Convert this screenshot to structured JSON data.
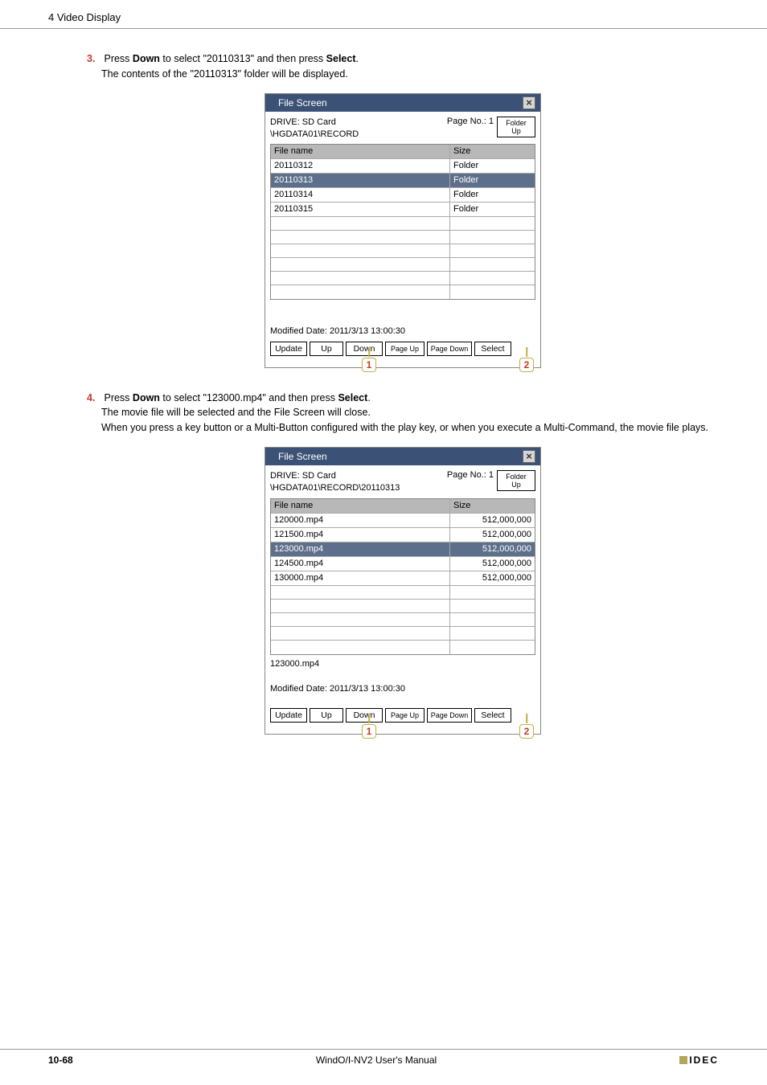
{
  "header": {
    "section": "4 Video Display"
  },
  "steps": [
    {
      "num": "3.",
      "line": "Press <b>Down</b> to select \"20110313\" and then press <b>Select</b>.",
      "sub": "The contents of the \"20110313\" folder will be displayed."
    },
    {
      "num": "4.",
      "line": "Press <b>Down</b> to select \"123000.mp4\" and then press <b>Select</b>.",
      "sub1": "The movie file will be selected and the File Screen will close.",
      "sub2": "When you press a key button or a Multi-Button configured with the play key, or when you execute a Multi-Command, the movie file plays."
    }
  ],
  "dialog1": {
    "title": "File Screen",
    "drive": "DRIVE: SD Card",
    "path": "\\HGDATA01\\RECORD",
    "pageno": "Page No.: 1",
    "folderup": "Folder Up",
    "headers": {
      "name": "File name",
      "size": "Size"
    },
    "rows": [
      {
        "name": "20110312",
        "size": "Folder",
        "sel": false
      },
      {
        "name": "20110313",
        "size": "Folder",
        "sel": true
      },
      {
        "name": "20110314",
        "size": "Folder",
        "sel": false
      },
      {
        "name": "20110315",
        "size": "Folder",
        "sel": false
      },
      {
        "name": "",
        "size": "",
        "sel": false
      },
      {
        "name": "",
        "size": "",
        "sel": false
      },
      {
        "name": "",
        "size": "",
        "sel": false
      },
      {
        "name": "",
        "size": "",
        "sel": false
      },
      {
        "name": "",
        "size": "",
        "sel": false
      },
      {
        "name": "",
        "size": "",
        "sel": false
      }
    ],
    "mid": "Modified Date: 2011/3/13 13:00:30",
    "buttons": {
      "update": "Update",
      "up": "Up",
      "down": "Down",
      "pageup": "Page Up",
      "pagedown": "Page Down",
      "select": "Select"
    },
    "callouts": {
      "c1": "1",
      "c2": "2"
    },
    "size_numeric": false
  },
  "dialog2": {
    "title": "File Screen",
    "drive": "DRIVE: SD Card",
    "path": "\\HGDATA01\\RECORD\\20110313",
    "pageno": "Page No.: 1",
    "folderup": "Folder Up",
    "headers": {
      "name": "File name",
      "size": "Size"
    },
    "rows": [
      {
        "name": "120000.mp4",
        "size": "512,000,000",
        "sel": false
      },
      {
        "name": "121500.mp4",
        "size": "512,000,000",
        "sel": false
      },
      {
        "name": "123000.mp4",
        "size": "512,000,000",
        "sel": true
      },
      {
        "name": "124500.mp4",
        "size": "512,000,000",
        "sel": false
      },
      {
        "name": "130000.mp4",
        "size": "512,000,000",
        "sel": false
      },
      {
        "name": "",
        "size": "",
        "sel": false
      },
      {
        "name": "",
        "size": "",
        "sel": false
      },
      {
        "name": "",
        "size": "",
        "sel": false
      },
      {
        "name": "",
        "size": "",
        "sel": false
      },
      {
        "name": "",
        "size": "",
        "sel": false
      }
    ],
    "mid_pre": "123000.mp4",
    "mid": "Modified Date: 2011/3/13 13:00:30",
    "buttons": {
      "update": "Update",
      "up": "Up",
      "down": "Down",
      "pageup": "Page Up",
      "pagedown": "Page Down",
      "select": "Select"
    },
    "callouts": {
      "c1": "1",
      "c2": "2"
    },
    "size_numeric": true
  },
  "footer": {
    "page": "10-68",
    "title": "WindO/I-NV2 User's Manual",
    "logo": "IDEC"
  }
}
